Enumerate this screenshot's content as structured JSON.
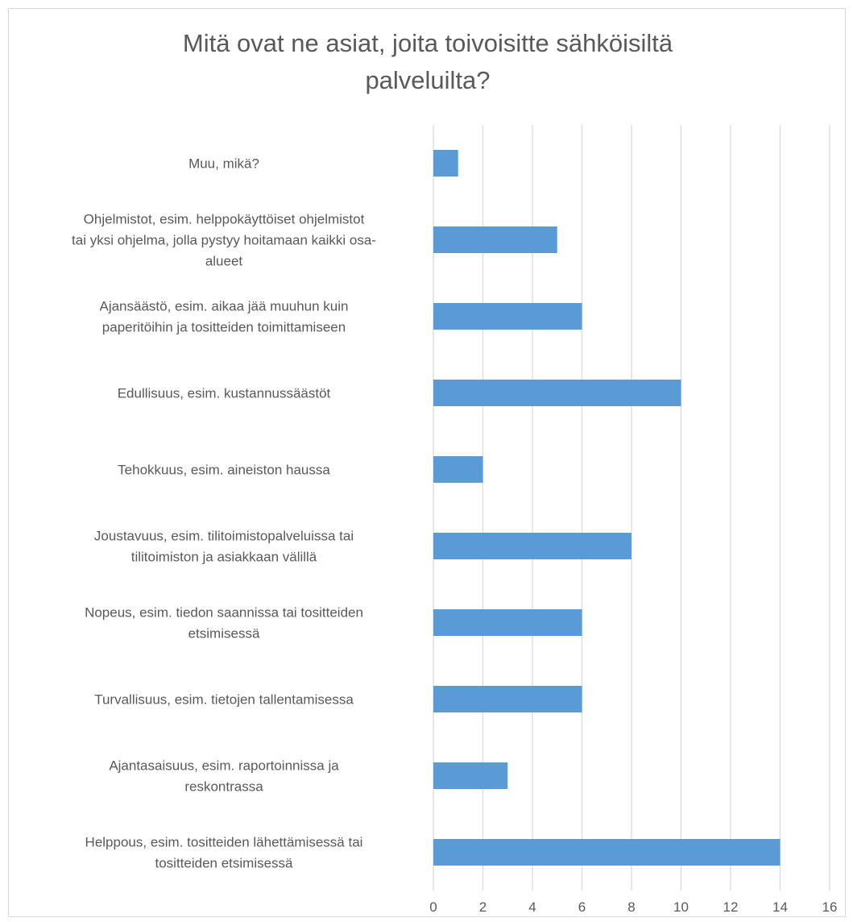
{
  "chart_data": {
    "type": "bar",
    "orientation": "horizontal",
    "title": "Mitä ovat ne asiat, joita toivoisitte sähköisiltä\npalveluilta?",
    "categories": [
      [
        "Muu, mikä?"
      ],
      [
        "Ohjelmistot, esim. helppokäyttöiset ohjelmistot",
        "tai yksi ohjelma, jolla pystyy hoitamaan kaikki osa-",
        "alueet"
      ],
      [
        "Ajansäästö, esim. aikaa jää muuhun kuin",
        "paperitöihin ja tositteiden toimittamiseen"
      ],
      [
        "Edullisuus, esim. kustannussäästöt"
      ],
      [
        "Tehokkuus, esim. aineiston haussa"
      ],
      [
        "Joustavuus, esim. tilitoimistopalveluissa tai",
        "tilitoimiston ja asiakkaan välillä"
      ],
      [
        "Nopeus, esim. tiedon saannissa tai tositteiden",
        "etsimisessä"
      ],
      [
        "Turvallisuus, esim. tietojen tallentamisessa"
      ],
      [
        "Ajantasaisuus, esim. raportoinnissa ja",
        "reskontrassa"
      ],
      [
        "Helppous, esim. tositteiden lähettämisessä tai",
        "tositteiden etsimisessä"
      ]
    ],
    "values": [
      1,
      5,
      6,
      10,
      2,
      8,
      6,
      6,
      3,
      14
    ],
    "xlim": [
      0,
      16
    ],
    "xticks": [
      0,
      2,
      4,
      6,
      8,
      10,
      12,
      14,
      16
    ],
    "xlabel": "",
    "ylabel": "",
    "grid": true,
    "legend": "none",
    "bar_color": "#5b9bd5",
    "grid_color": "#d9d9d9",
    "text_color": "#595959"
  }
}
